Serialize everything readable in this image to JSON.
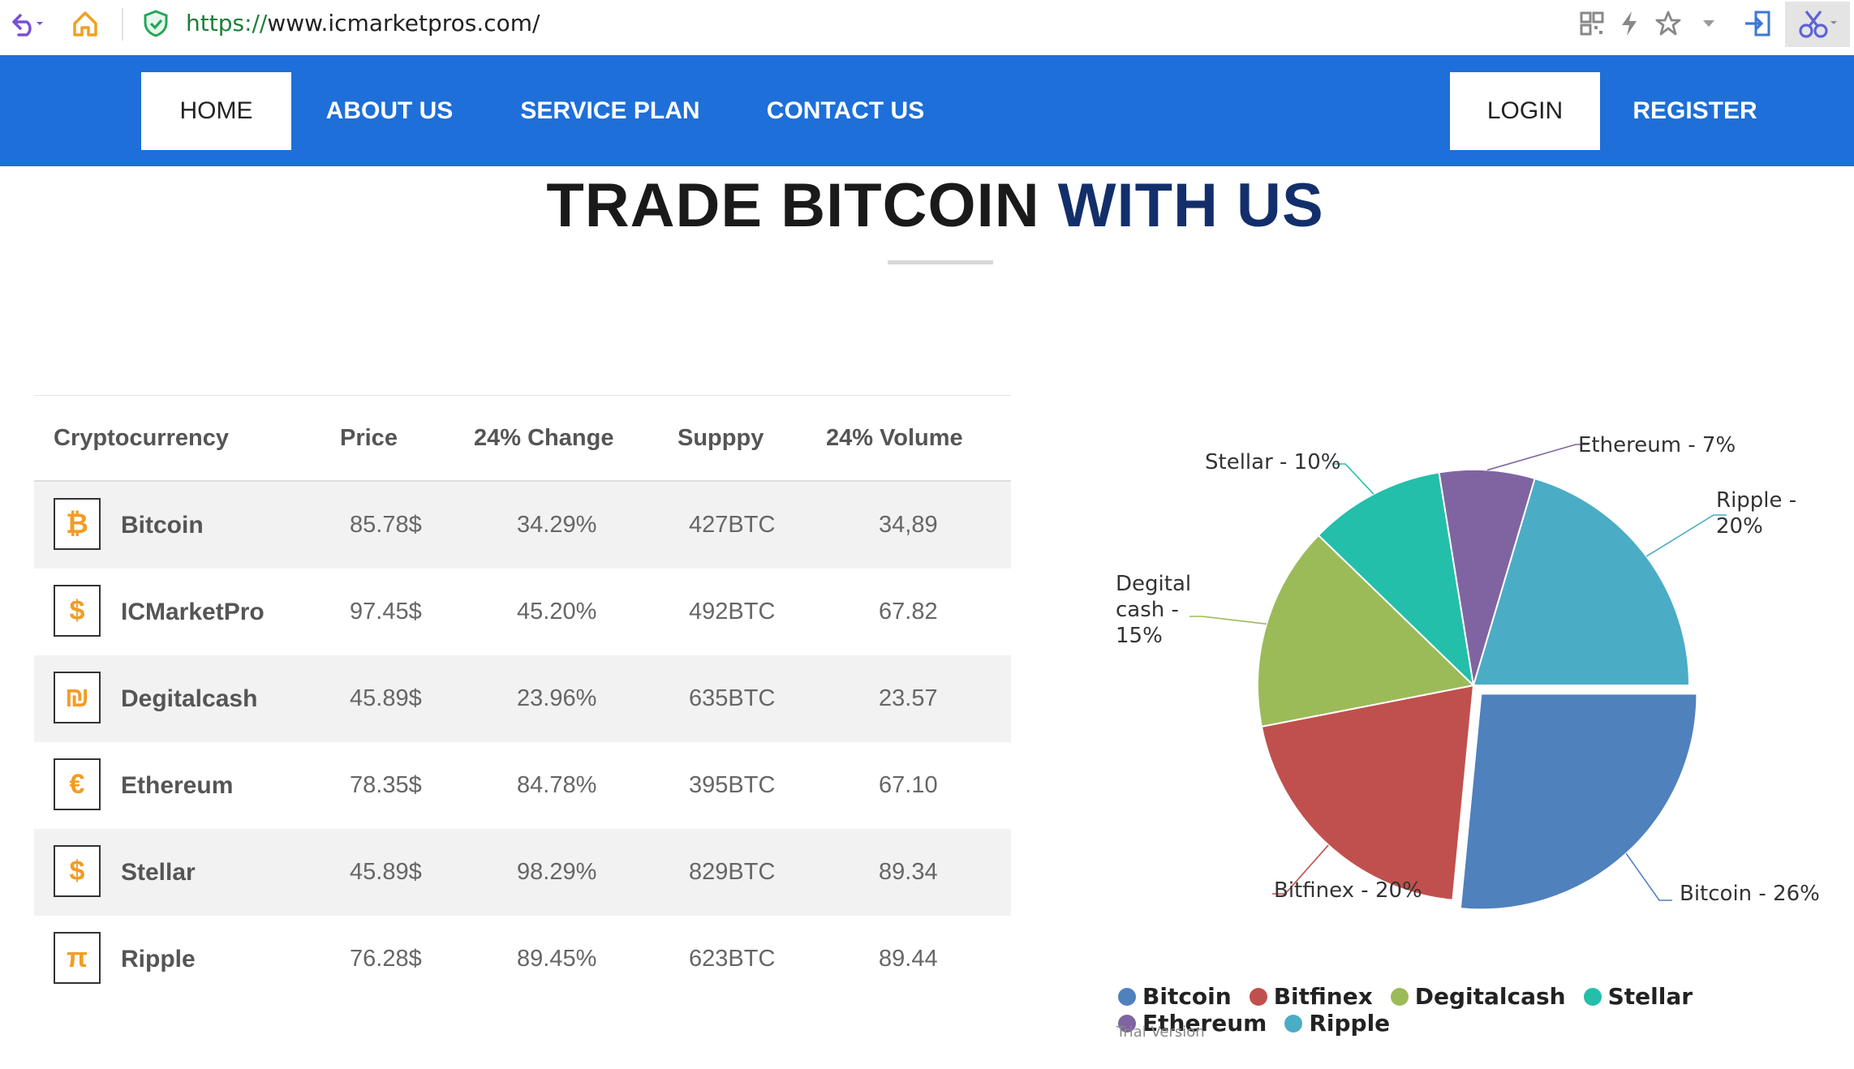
{
  "browser": {
    "url_scheme": "https://",
    "url_rest": "www.icmarketpros.com/"
  },
  "nav": {
    "home": "HOME",
    "about": "ABOUT US",
    "service": "SERVICE PLAN",
    "contact": "CONTACT US",
    "login": "LOGIN",
    "register": "REGISTER"
  },
  "heading": {
    "part1": "TRADE BITCOIN",
    "part2": "WITH US"
  },
  "table": {
    "headers": [
      "Cryptocurrency",
      "Price",
      "24% Change",
      "Supppy",
      "24% Volume"
    ],
    "rows": [
      {
        "icon": "bitcoin-icon",
        "glyph": "₿",
        "name": "Bitcoin",
        "price": "85.78$",
        "change": "34.29%",
        "supply": "427BTC",
        "volume": "34,89"
      },
      {
        "icon": "dollar-icon",
        "glyph": "$",
        "name": "ICMarketPro",
        "price": "97.45$",
        "change": "45.20%",
        "supply": "492BTC",
        "volume": "67.82"
      },
      {
        "icon": "shekel-icon",
        "glyph": "₪",
        "name": "Degitalcash",
        "price": "45.89$",
        "change": "23.96%",
        "supply": "635BTC",
        "volume": "23.57"
      },
      {
        "icon": "euro-icon",
        "glyph": "€",
        "name": "Ethereum",
        "price": "78.35$",
        "change": "84.78%",
        "supply": "395BTC",
        "volume": "67.10"
      },
      {
        "icon": "dollar-coin-icon",
        "glyph": "$",
        "name": "Stellar",
        "price": "45.89$",
        "change": "98.29%",
        "supply": "829BTC",
        "volume": "89.34"
      },
      {
        "icon": "pi-icon",
        "glyph": "π",
        "name": "Ripple",
        "price": "76.28$",
        "change": "89.45%",
        "supply": "623BTC",
        "volume": "89.44"
      }
    ]
  },
  "chart_data": {
    "type": "pie",
    "series": [
      {
        "name": "Bitcoin",
        "value": 26,
        "color": "#4f81bd",
        "label": "Bitcoin - 26%"
      },
      {
        "name": "Bitfinex",
        "value": 20,
        "color": "#c0504d",
        "label": "Bitfinex - 20%"
      },
      {
        "name": "Degitalcash",
        "value": 15,
        "color": "#9bbb59",
        "label": "Degital cash - 15%"
      },
      {
        "name": "Stellar",
        "value": 10,
        "color": "#23bfaa",
        "label": "Stellar - 10%"
      },
      {
        "name": "Ethereum",
        "value": 7,
        "color": "#8064a2",
        "label": "Ethereum - 7%"
      },
      {
        "name": "Ripple",
        "value": 20,
        "color": "#4bacc6",
        "label": "Ripple - 20%"
      }
    ],
    "legend_placement": "bottom",
    "watermark": "Trial Version"
  }
}
